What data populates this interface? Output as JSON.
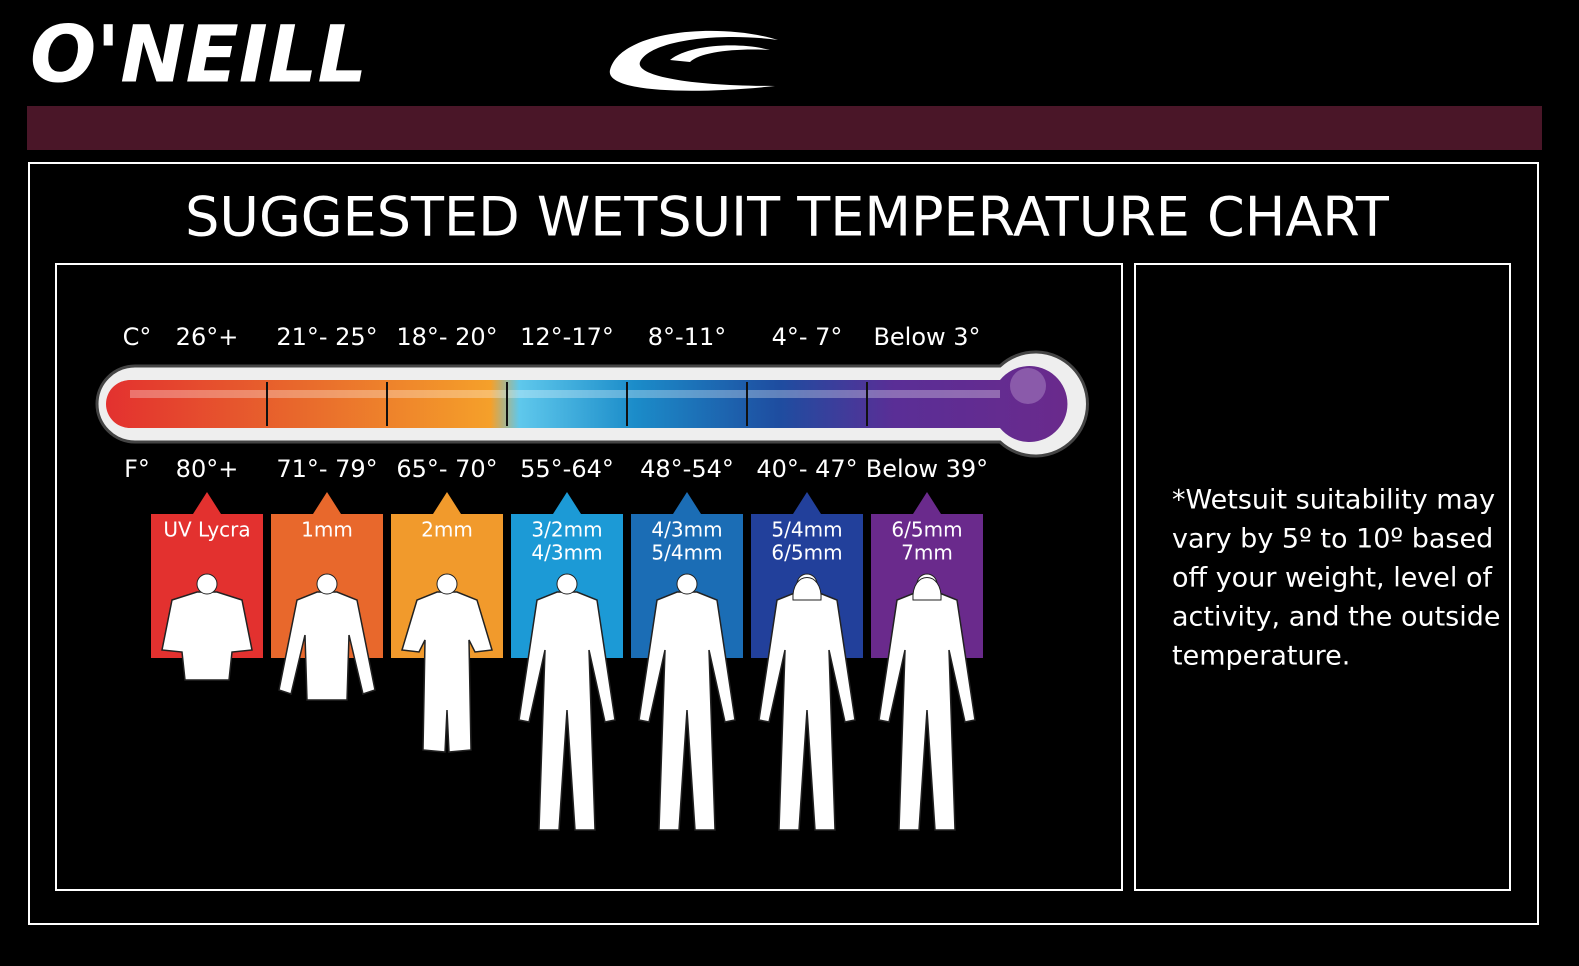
{
  "header": {
    "brand": "O'NEILL"
  },
  "title": "SUGGESTED WETSUIT TEMPERATURE CHART",
  "celsius_label": "C°",
  "fahrenheit_label": "F°",
  "columns": [
    {
      "celsius": "26°+",
      "fahrenheit": "80°+",
      "suit": [
        "UV Lycra"
      ],
      "color": "#e3312f"
    },
    {
      "celsius": "21°- 25°",
      "fahrenheit": "71°- 79°",
      "suit": [
        "1mm"
      ],
      "color": "#e8682c"
    },
    {
      "celsius": "18°- 20°",
      "fahrenheit": "65°- 70°",
      "suit": [
        "2mm"
      ],
      "color": "#f19a2c"
    },
    {
      "celsius": "12°-17°",
      "fahrenheit": "55°-64°",
      "suit": [
        "3/2mm",
        "4/3mm"
      ],
      "color": "#1c9ad6"
    },
    {
      "celsius": "8°-11°",
      "fahrenheit": "48°-54°",
      "suit": [
        "4/3mm",
        "5/4mm"
      ],
      "color": "#1b6db5"
    },
    {
      "celsius": "4°- 7°",
      "fahrenheit": "40°- 47°",
      "suit": [
        "5/4mm",
        "6/5mm"
      ],
      "color": "#22409b"
    },
    {
      "celsius": "Below 3°",
      "fahrenheit": "Below 39°",
      "suit": [
        "6/5mm",
        "7mm"
      ],
      "color": "#6a2a8c"
    }
  ],
  "note": [
    "*Wetsuit suitability may",
    "vary by 5º to 10º based",
    "off your weight, level of",
    "activity, and the outside",
    "temperature."
  ]
}
